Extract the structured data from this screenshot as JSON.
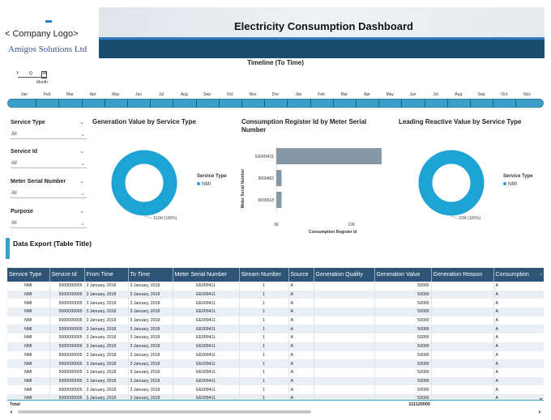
{
  "header": {
    "logo_text": "< Company Logo>",
    "logo_subtext": "Amigos Solutions Ltd",
    "title": "Electricity Consumption Dashboard"
  },
  "timeline": {
    "title": "Timeline (To Time)",
    "granularity": {
      "options": [
        "Y",
        "Q",
        "M"
      ],
      "selected": "M",
      "selected_label": "Month"
    },
    "months": [
      "Jan",
      "Feb",
      "Mar",
      "Apr",
      "May",
      "Jun",
      "Jul",
      "Aug",
      "Sep",
      "Oct",
      "Nov",
      "Dec",
      "Jan",
      "Feb",
      "Mar",
      "Apr",
      "May",
      "Jun",
      "Jul",
      "Aug",
      "Sep",
      "Oct",
      "Nov"
    ]
  },
  "slicers": [
    {
      "label": "Service Type",
      "value": "All"
    },
    {
      "label": "Service Id",
      "value": "All"
    },
    {
      "label": "Meter Serial Number",
      "value": "All"
    },
    {
      "label": "Purpose",
      "value": "All"
    }
  ],
  "charts": {
    "generation": {
      "title": "Generation Value by Service Type",
      "legend_title": "Service Type",
      "legend_item": "NMI",
      "label": "111M (100%)"
    },
    "register": {
      "title": "Consumption Register Id by Meter Serial Number",
      "y_axis_label": "Meter Serial Number",
      "x_axis_label": "Consumption Register Id",
      "ticks": [
        "0K",
        "10K"
      ]
    },
    "reactive": {
      "title": "Leading Reactive Value by Service Type",
      "legend_title": "Service Type",
      "legend_item": "NMI",
      "label": "31M (100%)"
    }
  },
  "chart_data": [
    {
      "type": "pie",
      "title": "Generation Value by Service Type",
      "categories": [
        "NMI"
      ],
      "values": [
        111120000
      ],
      "data_labels": [
        "111M (100%)"
      ],
      "legend": "right"
    },
    {
      "type": "bar",
      "orientation": "horizontal",
      "title": "Consumption Register Id by Meter Serial Number",
      "categories": [
        "EE009411",
        "9000463",
        "9000518"
      ],
      "values": [
        14000,
        700,
        700
      ],
      "xlabel": "Consumption Register Id",
      "ylabel": "Meter Serial Number",
      "xlim": [
        0,
        14000
      ],
      "ticks": [
        "0K",
        "10K"
      ]
    },
    {
      "type": "pie",
      "title": "Leading Reactive Value by Service Type",
      "categories": [
        "NMI"
      ],
      "values": [
        31000000
      ],
      "data_labels": [
        "31M (100%)"
      ],
      "legend": "right"
    }
  ],
  "export": {
    "title": "Data Export (Table Title)",
    "columns": [
      "Service Type",
      "Service Id",
      "From Time",
      "To Time",
      "Meter Serial Number",
      "Stream Number",
      "Source",
      "Generation Quality",
      "Generation Value",
      "Generation Reason",
      "Consumption"
    ],
    "rows": [
      [
        "NMI",
        "5000000005",
        "3 January, 2018",
        "3 January, 2018",
        "EE009411",
        "1",
        "A",
        "",
        "50000",
        "",
        "A"
      ],
      [
        "NMI",
        "5000000005",
        "3 January, 2018",
        "3 January, 2018",
        "EE009411",
        "1",
        "A",
        "",
        "50000",
        "",
        "A"
      ],
      [
        "NMI",
        "5000000005",
        "3 January, 2018",
        "3 January, 2018",
        "EE009411",
        "1",
        "A",
        "",
        "50000",
        "",
        "A"
      ],
      [
        "NMI",
        "5000000005",
        "3 January, 2018",
        "3 January, 2018",
        "EE009411",
        "1",
        "A",
        "",
        "50000",
        "",
        "A"
      ],
      [
        "NMI",
        "5000000005",
        "3 January, 2018",
        "3 January, 2018",
        "EE009411",
        "1",
        "A",
        "",
        "50000",
        "",
        "A"
      ],
      [
        "NMI",
        "5000000005",
        "3 January, 2018",
        "3 January, 2018",
        "EE009411",
        "1",
        "A",
        "",
        "50000",
        "",
        "A"
      ],
      [
        "NMI",
        "5000000005",
        "3 January, 2018",
        "3 January, 2018",
        "EE009411",
        "1",
        "A",
        "",
        "50000",
        "",
        "A"
      ],
      [
        "NMI",
        "5000000005",
        "3 January, 2018",
        "3 January, 2018",
        "EE009411",
        "1",
        "A",
        "",
        "50000",
        "",
        "A"
      ],
      [
        "NMI",
        "5000000005",
        "3 January, 2018",
        "3 January, 2018",
        "EE009411",
        "1",
        "A",
        "",
        "50000",
        "",
        "A"
      ],
      [
        "NMI",
        "5000000005",
        "3 January, 2018",
        "3 January, 2018",
        "EE009411",
        "1",
        "A",
        "",
        "50000",
        "",
        "A"
      ],
      [
        "NMI",
        "5000000005",
        "3 January, 2018",
        "3 January, 2018",
        "EE009411",
        "1",
        "A",
        "",
        "50000",
        "",
        "A"
      ],
      [
        "NMI",
        "5000000005",
        "3 January, 2018",
        "3 January, 2018",
        "EE009411",
        "1",
        "A",
        "",
        "50000",
        "",
        "A"
      ],
      [
        "NMI",
        "5000000005",
        "3 January, 2018",
        "3 January, 2018",
        "EE009411",
        "1",
        "A",
        "",
        "50000",
        "",
        "A"
      ],
      [
        "NMI",
        "5000000005",
        "3 January, 2018",
        "3 January, 2018",
        "EE009411",
        "1",
        "A",
        "",
        "50000",
        "",
        "A"
      ]
    ],
    "total_label": "Total",
    "total_value": "111120000"
  },
  "colors": {
    "accent": "#1ea3d5",
    "header_dark": "#1a4c6e",
    "table_header": "#2e5576",
    "bar": "#8598a8"
  }
}
